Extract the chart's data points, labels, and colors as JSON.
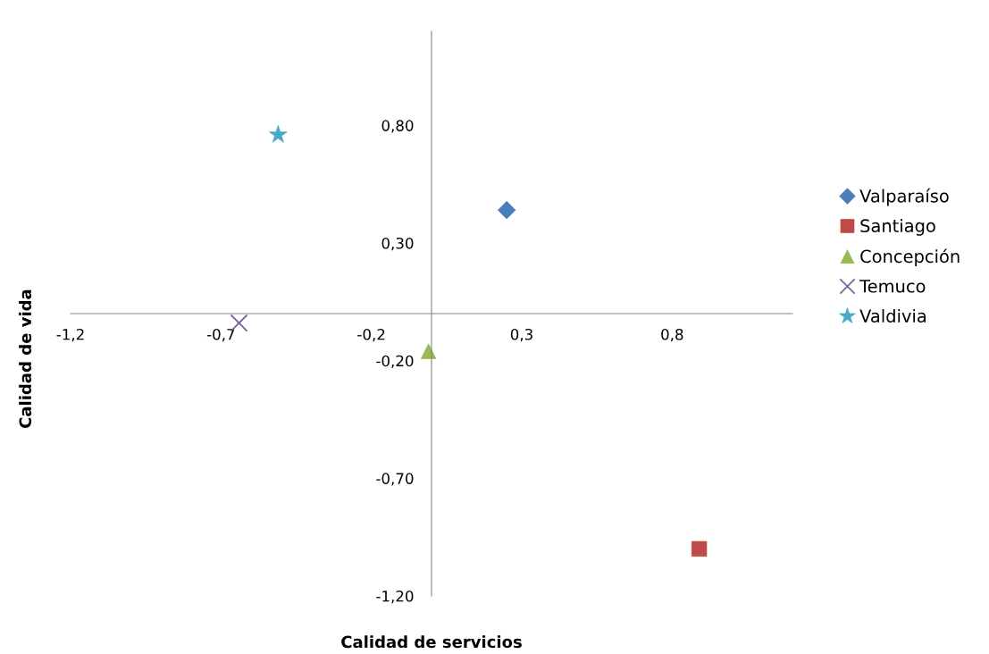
{
  "chart_data": {
    "type": "scatter",
    "xlabel": "Calidad de servicios",
    "ylabel": "Calidad de vida",
    "xlim": [
      -1.2,
      1.2
    ],
    "ylim": [
      -1.2,
      1.2
    ],
    "xticks": [
      {
        "value": -1.2,
        "label": "-1,2"
      },
      {
        "value": -0.7,
        "label": "-0,7"
      },
      {
        "value": -0.2,
        "label": "-0,2"
      },
      {
        "value": 0.3,
        "label": "0,3"
      },
      {
        "value": 0.8,
        "label": "0,8"
      }
    ],
    "yticks": [
      {
        "value": -1.2,
        "label": "-1,20"
      },
      {
        "value": -0.7,
        "label": "-0,70"
      },
      {
        "value": -0.2,
        "label": "-0,20"
      },
      {
        "value": 0.3,
        "label": "0,30"
      },
      {
        "value": 0.8,
        "label": "0,80"
      }
    ],
    "grid": false,
    "legend": "right",
    "series": [
      {
        "name": "Valparaíso",
        "color": "#4a7ebb",
        "marker": "diamond",
        "x": [
          0.25
        ],
        "values": [
          0.44
        ]
      },
      {
        "name": "Santiago",
        "color": "#be4b48",
        "marker": "square",
        "x": [
          0.89
        ],
        "values": [
          -1.0
        ]
      },
      {
        "name": "Concepción",
        "color": "#98b954",
        "marker": "triangle",
        "x": [
          -0.01
        ],
        "values": [
          -0.16
        ]
      },
      {
        "name": "Temuco",
        "color": "#7d60a0",
        "marker": "cross",
        "x": [
          -0.64
        ],
        "values": [
          -0.04
        ]
      },
      {
        "name": "Valdivia",
        "color": "#46aac5",
        "marker": "star",
        "x": [
          -0.51
        ],
        "values": [
          0.76
        ]
      }
    ]
  }
}
